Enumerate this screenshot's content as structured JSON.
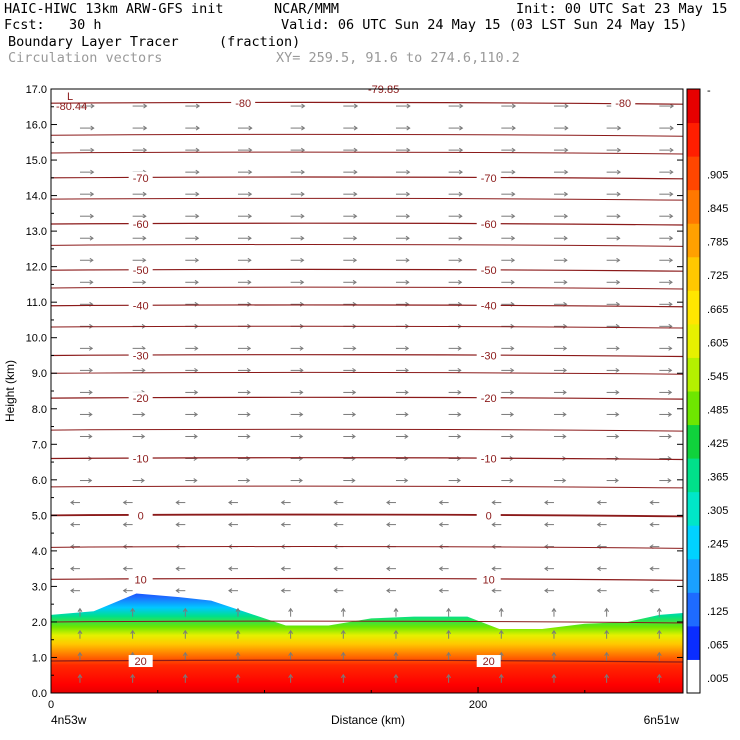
{
  "header": {
    "line1_left": "HAIC-HIWC 13km ARW-GFS init",
    "line1_mid": "NCAR/MMM",
    "init": "Init: 00 UTC Sat 23 May 15",
    "fcst": "Fcst:   30 h",
    "valid": "Valid: 06 UTC Sun 24 May 15 (03 LST Sun 24 May 15)",
    "field": "Boundary Layer Tracer",
    "units": "(fraction)",
    "vectors": "Circulation vectors",
    "xy": "XY= 259.5, 91.6 to 274.6,110.2"
  },
  "chart_data": {
    "type": "heatmap",
    "title": "Boundary Layer Tracer",
    "ylabel": "Height (km)",
    "xlabel": "Distance (km)",
    "ylim": [
      0,
      17
    ],
    "yticks": [
      "0.0",
      "1.0",
      "2.0",
      "3.0",
      "4.0",
      "5.0",
      "6.0",
      "7.0",
      "8.0",
      "9.0",
      "10.0",
      "11.0",
      "12.0",
      "13.0",
      "14.0",
      "15.0",
      "16.0",
      "17.0"
    ],
    "xticks": [
      {
        "value": 0,
        "label": "0"
      },
      {
        "value": 200,
        "label": "200"
      }
    ],
    "xlim": [
      0,
      296
    ],
    "x_left_label": "4n53w",
    "x_right_label": "6n51w",
    "colorbar": {
      "labels": [
        ".005",
        ".065",
        ".125",
        ".185",
        ".245",
        ".305",
        ".365",
        ".425",
        ".485",
        ".545",
        ".605",
        ".665",
        ".725",
        ".785",
        ".845",
        ".905"
      ],
      "top_label": "-",
      "colors": [
        "#ffffff",
        "#0a2dff",
        "#1e6bff",
        "#1aa0ff",
        "#00d2ff",
        "#00e6c8",
        "#00e08a",
        "#10d23c",
        "#6ee600",
        "#b4f000",
        "#e6f000",
        "#ffe600",
        "#ffc800",
        "#ffa000",
        "#ff7800",
        "#ff4600",
        "#ff1e00",
        "#e60000"
      ]
    },
    "tracer_top_km": [
      [
        0,
        2.2
      ],
      [
        20,
        2.3
      ],
      [
        40,
        2.8
      ],
      [
        60,
        2.7
      ],
      [
        75,
        2.6
      ],
      [
        90,
        2.3
      ],
      [
        110,
        1.9
      ],
      [
        130,
        1.9
      ],
      [
        150,
        2.1
      ],
      [
        170,
        2.15
      ],
      [
        195,
        2.15
      ],
      [
        210,
        1.8
      ],
      [
        230,
        1.8
      ],
      [
        250,
        1.95
      ],
      [
        270,
        2.0
      ],
      [
        285,
        2.2
      ],
      [
        296,
        2.25
      ]
    ],
    "contours": [
      {
        "label": "-80",
        "km": 16.6
      },
      {
        "label": "-70",
        "km": 14.5
      },
      {
        "label": "-60",
        "km": 13.2
      },
      {
        "label": "-50",
        "km": 11.9
      },
      {
        "label": "-40",
        "km": 10.9
      },
      {
        "label": "-30",
        "km": 9.5
      },
      {
        "label": "-20",
        "km": 8.3
      },
      {
        "label": "-10",
        "km": 6.6
      },
      {
        "label": "0",
        "km": 5.0
      },
      {
        "label": "10",
        "km": 3.2
      },
      {
        "label": "20",
        "km": 0.9
      }
    ],
    "extra_labels": [
      "-80.44",
      "L",
      "-79.85"
    ],
    "line_color": "#8b1a1a"
  }
}
